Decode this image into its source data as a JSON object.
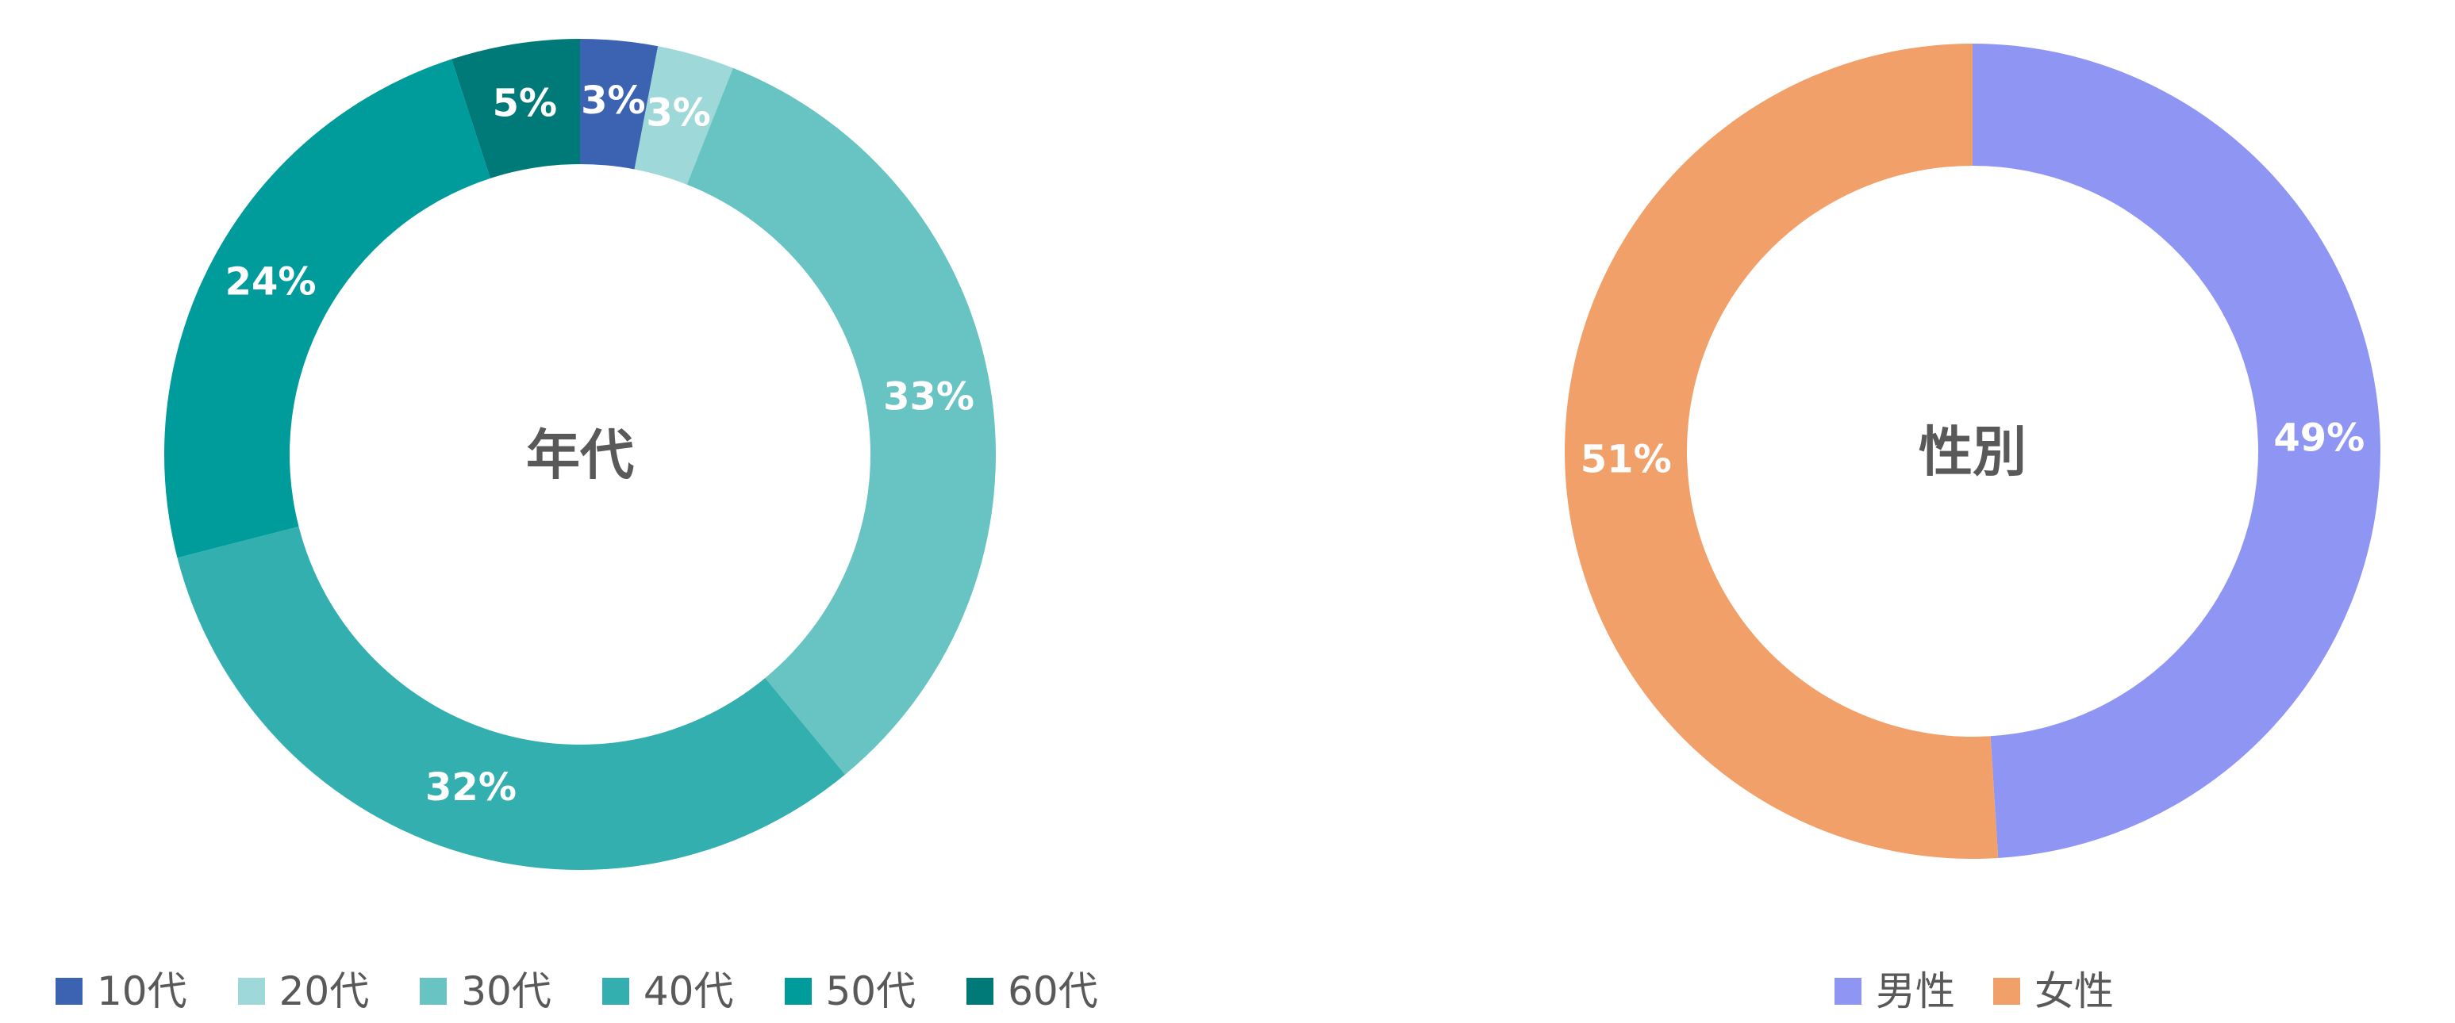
{
  "chart_data": [
    {
      "type": "pie",
      "center_label": "年代",
      "categories": [
        "10代",
        "20代",
        "30代",
        "40代",
        "50代",
        "60代"
      ],
      "values": [
        3,
        3,
        33,
        32,
        24,
        5
      ],
      "value_labels": [
        "3%",
        "3%",
        "33%",
        "32%",
        "24%",
        "5%"
      ],
      "colors": [
        "#3b63b2",
        "#9fd8d8",
        "#68c3c3",
        "#33afaf",
        "#009b9b",
        "#007a78"
      ],
      "legend_position": "bottom-left"
    },
    {
      "type": "pie",
      "center_label": "性別",
      "categories": [
        "男性",
        "女性"
      ],
      "values": [
        49,
        51
      ],
      "value_labels": [
        "49%",
        "51%"
      ],
      "colors": [
        "#8f95f3",
        "#f2a06a"
      ],
      "legend_position": "bottom-center"
    }
  ]
}
